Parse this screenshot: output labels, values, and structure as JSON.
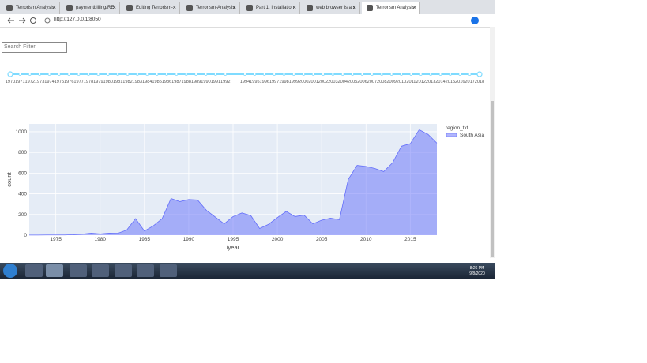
{
  "browser": {
    "tabs": [
      "Terrorism Analysis",
      "paymentbilling/RE",
      "Editing Terrorism-",
      "Terrorism-Analysis",
      "Part 1. Installation",
      "web browser is a s",
      "Terrorism Analysis"
    ],
    "url": "http://127.0.0.1:8050"
  },
  "search": {
    "placeholder": "Search Filter"
  },
  "slider": {
    "marks": [
      1970,
      1971,
      1972,
      1973,
      1974,
      1975,
      1976,
      1977,
      1978,
      1979,
      1980,
      1981,
      1982,
      1983,
      1984,
      1985,
      1986,
      1987,
      1988,
      1989,
      1990,
      1991,
      1992,
      1994,
      1995,
      1996,
      1997,
      1998,
      1999,
      2000,
      2001,
      2002,
      2003,
      2004,
      2005,
      2006,
      2007,
      2008,
      2009,
      2010,
      2011,
      2012,
      2013,
      2014,
      2015,
      2016,
      2017,
      2018
    ]
  },
  "chart_data": {
    "type": "area",
    "xlabel": "iyear",
    "ylabel": "count",
    "legend_title": "region_txt",
    "legend": "top-right",
    "grid": true,
    "x": [
      1972,
      1973,
      1974,
      1975,
      1976,
      1977,
      1978,
      1979,
      1980,
      1981,
      1982,
      1983,
      1984,
      1985,
      1986,
      1987,
      1988,
      1989,
      1990,
      1991,
      1992,
      1994,
      1995,
      1996,
      1997,
      1998,
      1999,
      2000,
      2001,
      2002,
      2003,
      2004,
      2005,
      2006,
      2007,
      2008,
      2009,
      2010,
      2011,
      2012,
      2013,
      2014,
      2015,
      2016,
      2017,
      2018
    ],
    "series": [
      {
        "name": "South Asia",
        "color": "#636efa",
        "values": [
          1,
          1,
          2,
          2,
          2,
          5,
          10,
          20,
          12,
          20,
          18,
          50,
          160,
          40,
          90,
          160,
          355,
          325,
          345,
          340,
          240,
          110,
          180,
          215,
          190,
          65,
          105,
          170,
          230,
          180,
          195,
          110,
          145,
          165,
          150,
          540,
          675,
          665,
          645,
          615,
          700,
          860,
          885,
          1020,
          975,
          890
        ]
      }
    ],
    "xlim": [
      1972,
      2018
    ],
    "xticks": [
      1975,
      1980,
      1985,
      1990,
      1995,
      2000,
      2005,
      2010,
      2015
    ],
    "ylim": [
      0,
      1076
    ],
    "yticks": [
      0,
      200,
      400,
      600,
      800,
      1000
    ]
  },
  "taskbar": {
    "time": "8:26 PM",
    "date": "9/8/2020"
  }
}
